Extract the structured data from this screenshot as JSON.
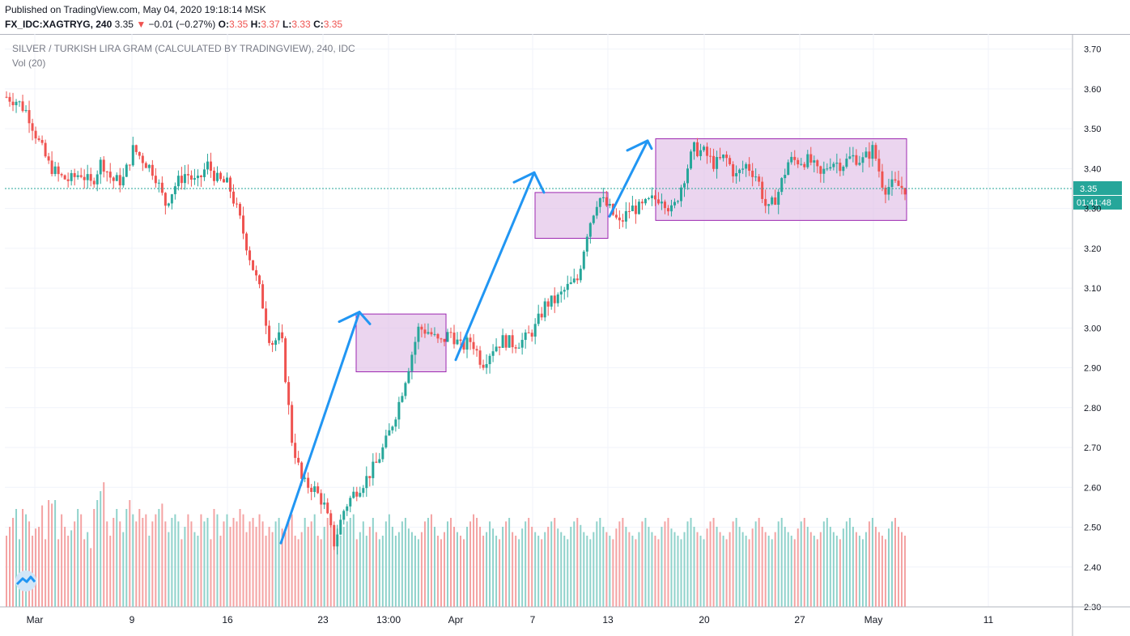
{
  "header": {
    "published": "Published on TradingView.com, May 04, 2020 19:18:14 MSK",
    "symbol": "FX_IDC:XAGTRYG, 240",
    "last": "3.35",
    "change_arrow": "▼",
    "change": "−0.01 (−0.27%)",
    "o_label": "O:",
    "o_value": "3.35",
    "h_label": "H:",
    "h_value": "3.37",
    "l_label": "L:",
    "l_value": "3.33",
    "c_label": "C:",
    "c_value": "3.35"
  },
  "legend": {
    "title": "SILVER / TURKISH LIRA GRAM (CALCULATED BY TRADINGVIEW), 240, IDC",
    "volume": "Vol (20)"
  },
  "colors": {
    "up": "#26a69a",
    "down": "#ef5350",
    "vol_up": "#8fd2cb",
    "vol_down": "#f4a3a3",
    "arrow": "#2196f3",
    "box_fill": "#e1bee7",
    "box_stroke": "#9c27b0",
    "price_line": "#26a69a",
    "grid": "#f0f3fa"
  },
  "chart_data": {
    "type": "candlestick",
    "ylim": [
      2.3,
      3.75
    ],
    "y_ticks": [
      "3.70",
      "3.60",
      "3.50",
      "3.40",
      "3.30",
      "3.20",
      "3.10",
      "3.00",
      "2.90",
      "2.80",
      "2.70",
      "2.60",
      "2.50",
      "2.40",
      "2.30"
    ],
    "x_ticks": [
      "Mar",
      "9",
      "16",
      "23",
      "13:00",
      "Apr",
      "7",
      "13",
      "20",
      "27",
      "May",
      "11"
    ],
    "last_price": "3.35",
    "countdown": "01:41:48",
    "close_path": [
      [
        0,
        3.58
      ],
      [
        1,
        3.57
      ],
      [
        2,
        3.54
      ],
      [
        3,
        3.47
      ],
      [
        4,
        3.41
      ],
      [
        5,
        3.38
      ],
      [
        6,
        3.37
      ],
      [
        7,
        3.39
      ],
      [
        8,
        3.36
      ],
      [
        9,
        3.42
      ],
      [
        10,
        3.37
      ],
      [
        11,
        3.37
      ],
      [
        12,
        3.45
      ],
      [
        13,
        3.42
      ],
      [
        14,
        3.39
      ],
      [
        15,
        3.31
      ],
      [
        16,
        3.36
      ],
      [
        17,
        3.39
      ],
      [
        18,
        3.36
      ],
      [
        19,
        3.41
      ],
      [
        20,
        3.37
      ],
      [
        21,
        3.36
      ],
      [
        22,
        3.28
      ],
      [
        23,
        3.18
      ],
      [
        24,
        3.09
      ],
      [
        25,
        2.96
      ],
      [
        26,
        2.98
      ],
      [
        27,
        2.72
      ],
      [
        28,
        2.61
      ],
      [
        29,
        2.6
      ],
      [
        30,
        2.56
      ],
      [
        31,
        2.46
      ],
      [
        32,
        2.55
      ],
      [
        33,
        2.59
      ],
      [
        34,
        2.62
      ],
      [
        35,
        2.66
      ],
      [
        36,
        2.72
      ],
      [
        37,
        2.8
      ],
      [
        38,
        2.9
      ],
      [
        39,
        3.0
      ],
      [
        40,
        2.99
      ],
      [
        41,
        2.96
      ],
      [
        42,
        2.99
      ],
      [
        43,
        2.95
      ],
      [
        44,
        2.97
      ],
      [
        45,
        2.91
      ],
      [
        46,
        2.95
      ],
      [
        47,
        2.97
      ],
      [
        48,
        2.96
      ],
      [
        49,
        2.97
      ],
      [
        50,
        3.0
      ],
      [
        51,
        3.06
      ],
      [
        52,
        3.07
      ],
      [
        53,
        3.1
      ],
      [
        54,
        3.12
      ],
      [
        55,
        3.25
      ],
      [
        56,
        3.33
      ],
      [
        57,
        3.3
      ],
      [
        58,
        3.26
      ],
      [
        59,
        3.3
      ],
      [
        60,
        3.3
      ],
      [
        61,
        3.32
      ],
      [
        62,
        3.33
      ],
      [
        63,
        3.29
      ],
      [
        64,
        3.37
      ],
      [
        65,
        3.45
      ],
      [
        66,
        3.44
      ],
      [
        67,
        3.41
      ],
      [
        68,
        3.43
      ],
      [
        69,
        3.38
      ],
      [
        70,
        3.41
      ],
      [
        71,
        3.38
      ],
      [
        72,
        3.29
      ],
      [
        73,
        3.34
      ],
      [
        74,
        3.42
      ],
      [
        75,
        3.42
      ],
      [
        76,
        3.42
      ],
      [
        77,
        3.38
      ],
      [
        78,
        3.42
      ],
      [
        79,
        3.41
      ],
      [
        80,
        3.43
      ],
      [
        81,
        3.42
      ],
      [
        82,
        3.45
      ],
      [
        83,
        3.35
      ],
      [
        84,
        3.36
      ],
      [
        85,
        3.35
      ]
    ],
    "volume": [
      40,
      45,
      50,
      55,
      38,
      55,
      52,
      48,
      40,
      44,
      45,
      57,
      38,
      60,
      58,
      60,
      38,
      52,
      45,
      40,
      43,
      48,
      55,
      52,
      38,
      42,
      33,
      55,
      60,
      65,
      70,
      48,
      40,
      50,
      55,
      48,
      42,
      55,
      60,
      52,
      48,
      55,
      50,
      52,
      40,
      48,
      52,
      55,
      58,
      48,
      42,
      50,
      52,
      48,
      38,
      45,
      52,
      48,
      42,
      40,
      52,
      48,
      50,
      38,
      55,
      52,
      40,
      48,
      52,
      45,
      50,
      48,
      55,
      52,
      42,
      48,
      50,
      45,
      52,
      48,
      40,
      45,
      42,
      48,
      50,
      44,
      42,
      48,
      52,
      40,
      38,
      42,
      50,
      45,
      48,
      52,
      40,
      38,
      45,
      50,
      52,
      48,
      44,
      40,
      45,
      48,
      50,
      52,
      38,
      42,
      48,
      40,
      45,
      50,
      42,
      38,
      40,
      48,
      52,
      45,
      40,
      42,
      48,
      50,
      44,
      42,
      40,
      38,
      42,
      48,
      50,
      52,
      45,
      40,
      38,
      42,
      48,
      50,
      45,
      42,
      40,
      38,
      45,
      48,
      52,
      50,
      45,
      40,
      42,
      48,
      44,
      40,
      38,
      45,
      48,
      50,
      42,
      40,
      38,
      44,
      48,
      50,
      45,
      42,
      40,
      38,
      42,
      45,
      48,
      50,
      44,
      42,
      40,
      38,
      45,
      48,
      50,
      46,
      42,
      40,
      38,
      42,
      48,
      50,
      45,
      42,
      40,
      38,
      44,
      48,
      50,
      45,
      42,
      40,
      38,
      42,
      48,
      50,
      45,
      42,
      40,
      38,
      45,
      48,
      50,
      44,
      42,
      40,
      38,
      42,
      48,
      50,
      45,
      42,
      40,
      38,
      44,
      48,
      50,
      45,
      42,
      40,
      38,
      42,
      48,
      50,
      45,
      42,
      40,
      38,
      44,
      48,
      50,
      45,
      42,
      40,
      38,
      42,
      48,
      50,
      45,
      42,
      40,
      38,
      44,
      48,
      50,
      45,
      42,
      40,
      38,
      42,
      48,
      50,
      45,
      42,
      40,
      38,
      44,
      48,
      50,
      45,
      42,
      40,
      38,
      42,
      48,
      50,
      45,
      42,
      40,
      38,
      44,
      48,
      50,
      45,
      42,
      40,
      38,
      42,
      48,
      50,
      45,
      42,
      40,
      38
    ],
    "rectangles": [
      {
        "low": 2.89,
        "high": 3.035
      },
      {
        "low": 3.225,
        "high": 3.34
      },
      {
        "low": 3.27,
        "high": 3.475
      }
    ],
    "arrows": [
      {
        "y": [
          2.46,
          3.04
        ],
        "tip": [
          3.04,
          3.01
        ]
      },
      {
        "y": [
          2.92,
          3.39
        ],
        "tip": [
          3.39,
          3.34
        ]
      },
      {
        "y": [
          3.28,
          3.47
        ],
        "tip": [
          3.47,
          3.45
        ]
      }
    ]
  }
}
